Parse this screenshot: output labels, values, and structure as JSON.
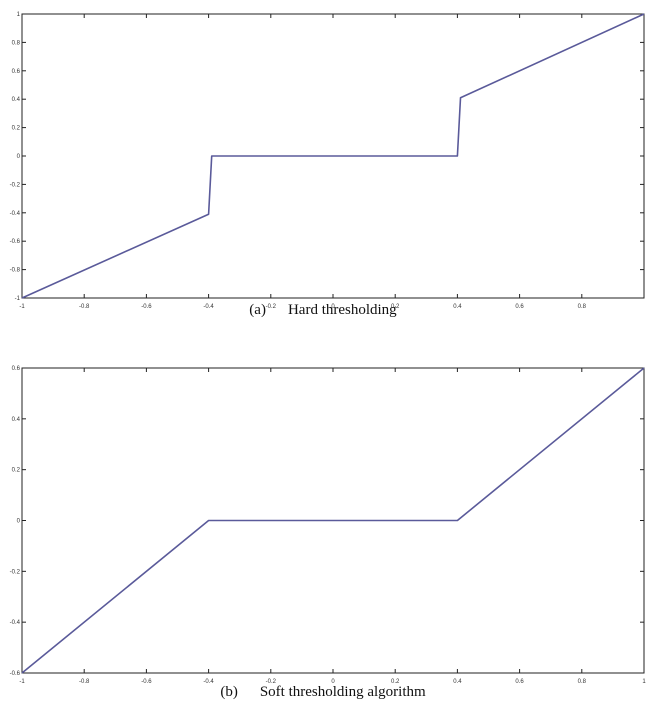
{
  "chart_data": [
    {
      "type": "line",
      "caption_label": "(a)",
      "caption_text": "Hard thresholding",
      "xlim": [
        -1,
        1
      ],
      "ylim": [
        -1,
        1
      ],
      "xticks": [
        -1,
        -0.8,
        -0.6,
        -0.4,
        -0.2,
        0,
        0.2,
        0.4,
        0.6,
        0.8,
        1
      ],
      "xtick_labels": [
        "-1",
        "-0.8",
        "-0.6",
        "-0.4",
        "-0.2",
        "0",
        "0.2",
        "0.4",
        "0.6",
        "0.8",
        ""
      ],
      "yticks": [
        -1,
        -0.8,
        -0.6,
        -0.4,
        -0.2,
        0,
        0.2,
        0.4,
        0.6,
        0.8,
        1
      ],
      "ytick_labels": [
        "-1",
        "-0.8",
        "-0.6",
        "-0.4",
        "-0.2",
        "0",
        "0.2",
        "0.4",
        "0.6",
        "0.8",
        "1"
      ],
      "grid": false,
      "line_color": "#5a5a9a",
      "series": [
        {
          "x": [
            -1,
            -0.4,
            -0.39,
            0.4,
            0.41,
            1
          ],
          "y": [
            -1,
            -0.41,
            0,
            0,
            0.41,
            1
          ]
        }
      ]
    },
    {
      "type": "line",
      "caption_label": "(b)",
      "caption_text": "Soft thresholding algorithm",
      "xlim": [
        -1,
        1
      ],
      "ylim": [
        -0.6,
        0.6
      ],
      "xticks": [
        -1,
        -0.8,
        -0.6,
        -0.4,
        -0.2,
        0,
        0.2,
        0.4,
        0.6,
        0.8,
        1
      ],
      "xtick_labels": [
        "-1",
        "-0.8",
        "-0.6",
        "-0.4",
        "-0.2",
        "0",
        "0.2",
        "0.4",
        "0.6",
        "0.8",
        "1"
      ],
      "yticks": [
        -0.6,
        -0.4,
        -0.2,
        0,
        0.2,
        0.4,
        0.6
      ],
      "ytick_labels": [
        "-0.6",
        "-0.4",
        "-0.2",
        "0",
        "0.2",
        "0.4",
        "0.6"
      ],
      "grid": false,
      "line_color": "#5a5a9a",
      "series": [
        {
          "x": [
            -1,
            -0.4,
            0.4,
            1
          ],
          "y": [
            -0.6,
            0,
            0,
            0.6
          ]
        }
      ]
    }
  ]
}
